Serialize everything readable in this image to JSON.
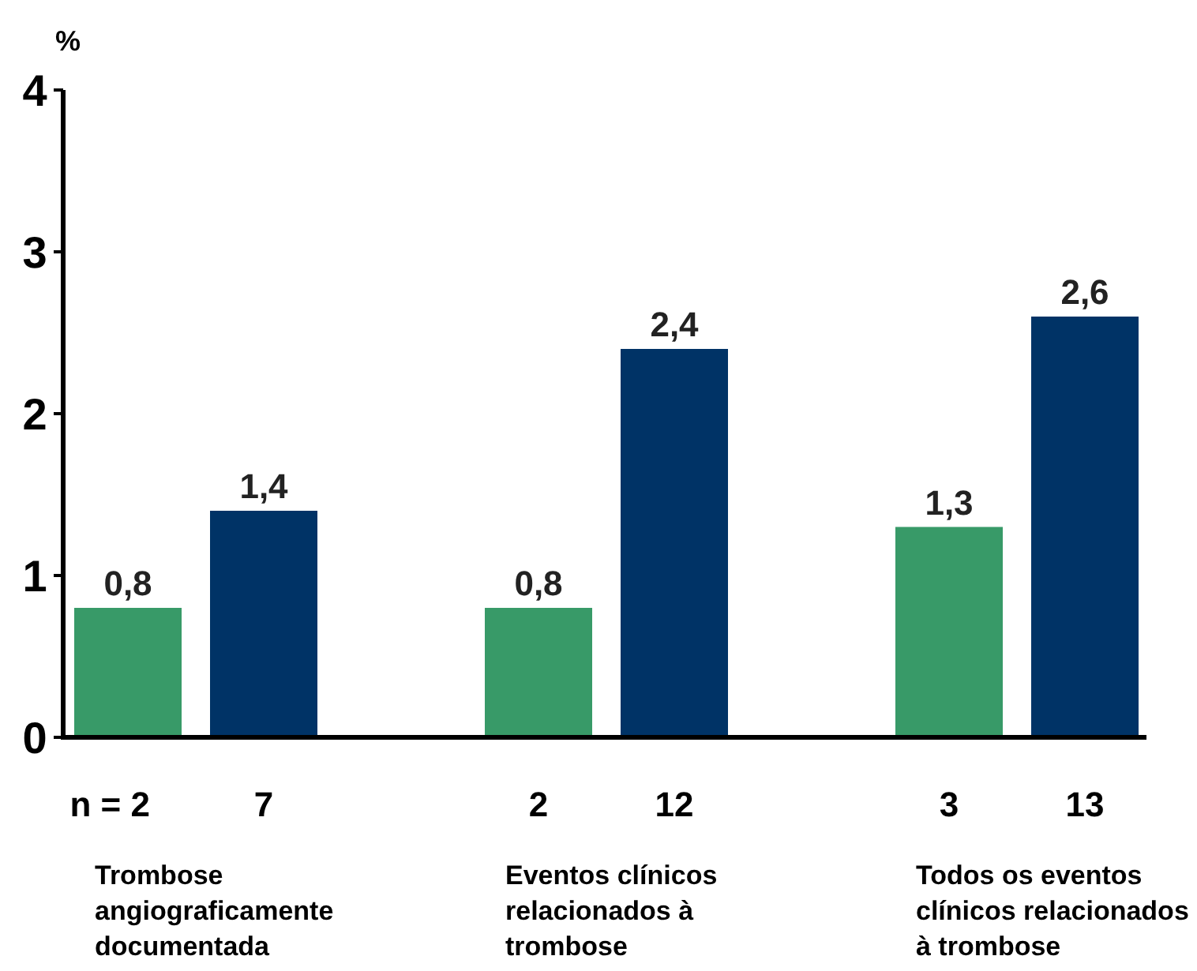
{
  "chart_data": {
    "type": "bar",
    "ylabel": "%",
    "categories": [
      "Trombose angiograficamente documentada",
      "Eventos clínicos relacionados à trombose",
      "Todos os eventos clínicos relacionados à trombose"
    ],
    "series": [
      {
        "color": "#389a68",
        "values": [
          0.8,
          0.8,
          1.3
        ],
        "value_labels": [
          "0,8",
          "0,8",
          "1,3"
        ]
      },
      {
        "color": "#003366",
        "values": [
          1.4,
          2.4,
          2.6
        ],
        "value_labels": [
          "1,4",
          "2,4",
          "2,6"
        ]
      }
    ],
    "ylim": [
      0,
      4
    ],
    "yticks": [
      0,
      1,
      2,
      3,
      4
    ],
    "grid": false,
    "annotations": [
      "n = 2",
      "7",
      "2",
      "12",
      "3",
      "13"
    ]
  }
}
